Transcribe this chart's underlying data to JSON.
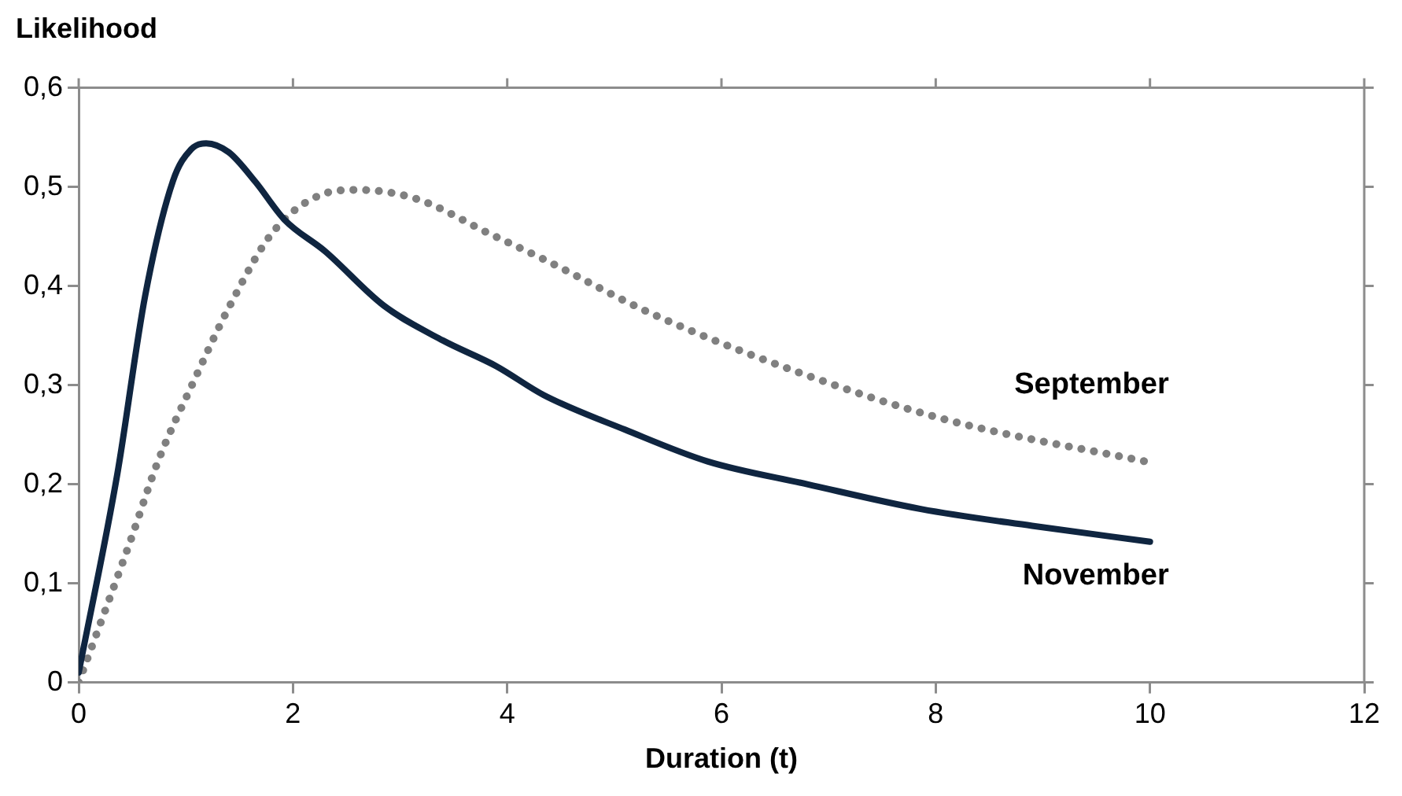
{
  "chart_data": {
    "type": "line",
    "ylabel": "Likelihood",
    "xlabel": "Duration (t)",
    "xlim": [
      0,
      12
    ],
    "xticks": [
      0,
      2,
      4,
      6,
      8,
      10,
      12
    ],
    "ylim": [
      0,
      0.6
    ],
    "yticks": [
      {
        "value": 0,
        "label": "0"
      },
      {
        "value": 0.1,
        "label": "0,1"
      },
      {
        "value": 0.2,
        "label": "0,2"
      },
      {
        "value": 0.3,
        "label": "0,3"
      },
      {
        "value": 0.4,
        "label": "0,4"
      },
      {
        "value": 0.5,
        "label": "0,5"
      },
      {
        "value": 0.6,
        "label": "0,6"
      }
    ],
    "grid": false,
    "legend": false,
    "marker": "none",
    "series": [
      {
        "name": "November",
        "color": "#0f2540",
        "line_style": "solid",
        "x": [
          0,
          0.36,
          0.62,
          0.88,
          1.05,
          1.19,
          1.4,
          1.65,
          1.92,
          2.3,
          2.85,
          3.4,
          3.9,
          4.34,
          5.1,
          5.87,
          6.8,
          7.86,
          8.9,
          10
        ],
        "values": [
          0.01,
          0.21,
          0.39,
          0.506,
          0.538,
          0.544,
          0.535,
          0.505,
          0.467,
          0.435,
          0.38,
          0.345,
          0.319,
          0.29,
          0.255,
          0.223,
          0.2,
          0.175,
          0.158,
          0.142
        ]
      },
      {
        "name": "September",
        "color": "#808080",
        "line_style": "dotted",
        "x": [
          0,
          0.48,
          0.74,
          1.07,
          1.41,
          1.81,
          2.26,
          2.6,
          3.15,
          3.85,
          4.34,
          5.33,
          6.69,
          8.1,
          10
        ],
        "values": [
          0,
          0.142,
          0.223,
          0.303,
          0.38,
          0.454,
          0.492,
          0.497,
          0.488,
          0.452,
          0.427,
          0.373,
          0.314,
          0.265,
          0.222
        ]
      }
    ]
  }
}
